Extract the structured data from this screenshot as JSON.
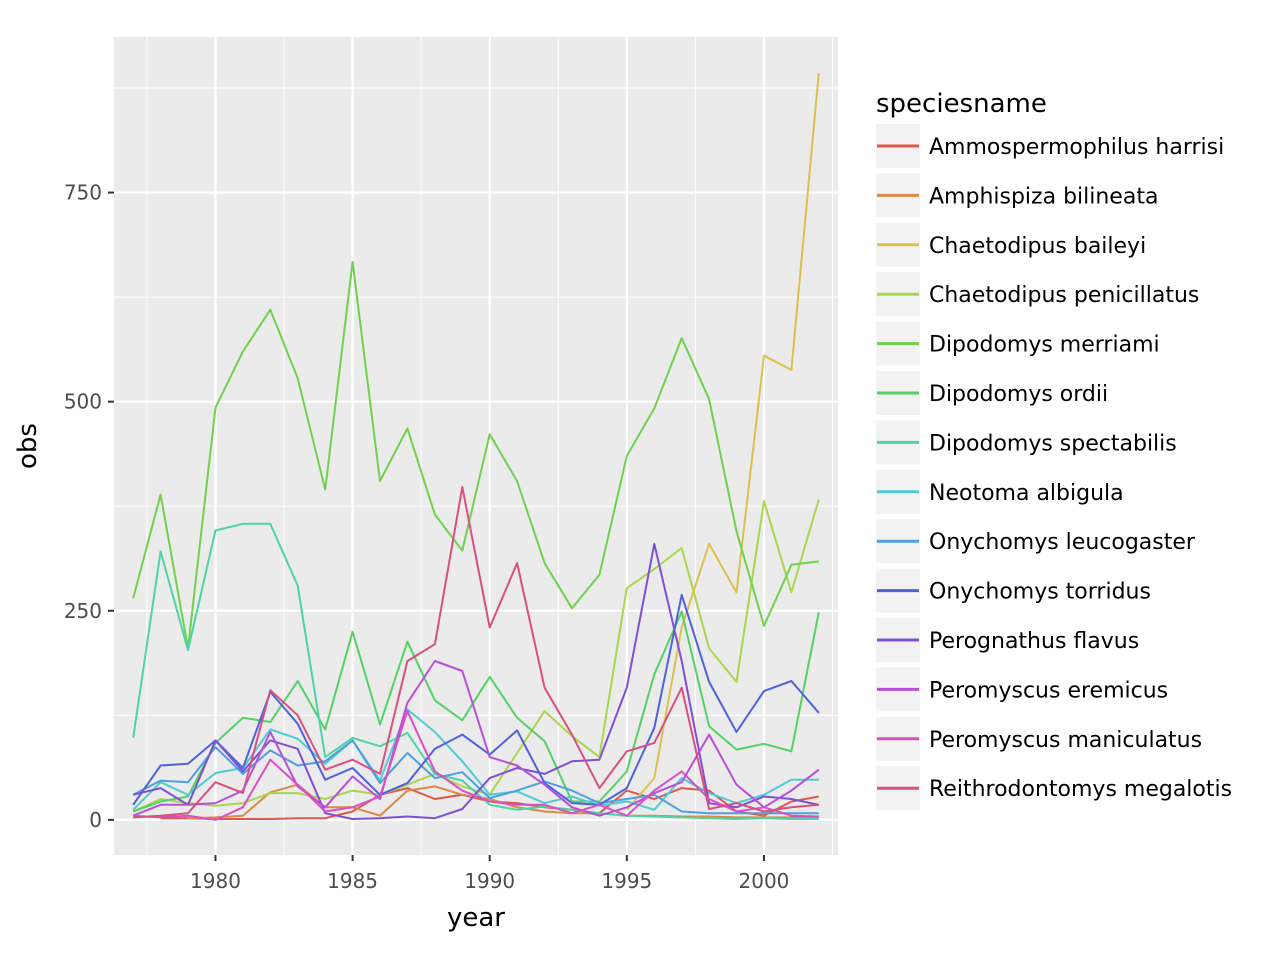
{
  "chart_data": {
    "type": "line",
    "xlabel": "year",
    "ylabel": "obs",
    "xlim": [
      1976.3,
      2002.7
    ],
    "ylim": [
      -42,
      936
    ],
    "x_ticks": [
      1980,
      1985,
      1990,
      1995,
      2000
    ],
    "y_ticks": [
      0,
      250,
      500,
      750
    ],
    "x_tick_labels": [
      "1980",
      "1985",
      "1990",
      "1995",
      "2000"
    ],
    "y_tick_labels": [
      "0",
      "250",
      "500",
      "750"
    ],
    "grid": true,
    "legend": {
      "title": "speciesname",
      "placement": "right"
    },
    "series": [
      {
        "name": "Ammospermophilus harrisi",
        "color": "#e0574b",
        "x": [
          1978,
          1979,
          1980,
          1981,
          1982,
          1983,
          1984,
          1985,
          1986,
          1987,
          1988,
          1989,
          1990,
          1991,
          1992,
          1993,
          1994,
          1995,
          1996,
          1997,
          1998,
          1999,
          2000,
          2001,
          2002
        ],
        "y": [
          2,
          2,
          1,
          1,
          1,
          2,
          2,
          10,
          30,
          38,
          25,
          30,
          22,
          20,
          15,
          12,
          8,
          35,
          25,
          38,
          35,
          10,
          5,
          22,
          28
        ]
      },
      {
        "name": "Amphispiza bilineata",
        "color": "#d98a46",
        "x": [
          1979,
          1980,
          1981,
          1982,
          1983,
          1984,
          1985,
          1986,
          1987,
          1988,
          1989,
          1990,
          1991,
          1992,
          1993,
          1994,
          1995,
          1996,
          1997,
          1998,
          1999,
          2000,
          2001,
          2002
        ],
        "y": [
          2,
          3,
          5,
          33,
          42,
          15,
          15,
          5,
          35,
          40,
          30,
          25,
          15,
          10,
          8,
          8,
          5,
          5,
          4,
          4,
          3,
          3,
          3,
          3
        ]
      },
      {
        "name": "Chaetodipus baileyi",
        "color": "#dbc24e",
        "x": [
          1995,
          1996,
          1997,
          1998,
          1999,
          2000,
          2001,
          2002
        ],
        "y": [
          12,
          50,
          230,
          330,
          272,
          555,
          538,
          893
        ]
      },
      {
        "name": "Chaetodipus penicillatus",
        "color": "#a9d64c",
        "x": [
          1977,
          1978,
          1979,
          1980,
          1981,
          1982,
          1983,
          1984,
          1985,
          1986,
          1987,
          1988,
          1989,
          1990,
          1991,
          1992,
          1993,
          1994,
          1995,
          1996,
          1997,
          1998,
          1999,
          2000,
          2001,
          2002
        ],
        "y": [
          10,
          25,
          20,
          17,
          20,
          32,
          32,
          25,
          35,
          30,
          42,
          55,
          40,
          30,
          80,
          130,
          100,
          75,
          277,
          300,
          325,
          205,
          165,
          381,
          272,
          383
        ]
      },
      {
        "name": "Dipodomys merriami",
        "color": "#6fd14d",
        "x": [
          1977,
          1978,
          1979,
          1980,
          1981,
          1982,
          1983,
          1984,
          1985,
          1986,
          1987,
          1988,
          1989,
          1990,
          1991,
          1992,
          1993,
          1994,
          1995,
          1996,
          1997,
          1998,
          1999,
          2000,
          2001,
          2002
        ],
        "y": [
          265,
          389,
          205,
          493,
          560,
          610,
          528,
          395,
          667,
          405,
          468,
          365,
          322,
          461,
          405,
          307,
          253,
          293,
          435,
          492,
          576,
          503,
          345,
          232,
          305,
          309
        ]
      },
      {
        "name": "Dipodomys ordii",
        "color": "#54d166",
        "x": [
          1977,
          1978,
          1979,
          1980,
          1981,
          1982,
          1983,
          1984,
          1985,
          1986,
          1987,
          1988,
          1989,
          1990,
          1991,
          1992,
          1993,
          1994,
          1995,
          1996,
          1997,
          1998,
          1999,
          2000,
          2001,
          2002
        ],
        "y": [
          10,
          22,
          28,
          92,
          122,
          117,
          166,
          108,
          225,
          114,
          213,
          143,
          119,
          171,
          122,
          94,
          22,
          22,
          58,
          174,
          249,
          112,
          84,
          91,
          82,
          248
        ]
      },
      {
        "name": "Dipodomys spectabilis",
        "color": "#4ed4a3",
        "x": [
          1977,
          1978,
          1979,
          1980,
          1981,
          1982,
          1983,
          1984,
          1985,
          1986,
          1987,
          1988,
          1989,
          1990,
          1991,
          1992,
          1993,
          1994,
          1995,
          1996,
          1997,
          1998,
          1999,
          2000,
          2001,
          2002
        ],
        "y": [
          98,
          321,
          203,
          346,
          354,
          354,
          280,
          75,
          98,
          88,
          104,
          55,
          47,
          18,
          12,
          16,
          12,
          8,
          5,
          4,
          3,
          2,
          1,
          2,
          1,
          1
        ]
      },
      {
        "name": "Neotoma albigula",
        "color": "#4ecbd3",
        "x": [
          1977,
          1978,
          1979,
          1980,
          1981,
          1982,
          1983,
          1984,
          1985,
          1986,
          1987,
          1988,
          1989,
          1990,
          1991,
          1992,
          1993,
          1994,
          1995,
          1996,
          1997,
          1998,
          1999,
          2000,
          2001,
          2002
        ],
        "y": [
          12,
          45,
          30,
          56,
          62,
          108,
          97,
          67,
          95,
          47,
          132,
          105,
          70,
          30,
          34,
          20,
          28,
          17,
          22,
          12,
          50,
          32,
          20,
          30,
          48,
          48
        ]
      },
      {
        "name": "Onychomys leucogaster",
        "color": "#4f9ee0",
        "x": [
          1977,
          1978,
          1979,
          1980,
          1981,
          1982,
          1983,
          1984,
          1985,
          1986,
          1987,
          1988,
          1989,
          1990,
          1991,
          1992,
          1993,
          1994,
          1995,
          1996,
          1997,
          1998,
          1999,
          2000,
          2001,
          2002
        ],
        "y": [
          30,
          47,
          45,
          87,
          55,
          83,
          65,
          70,
          95,
          44,
          80,
          50,
          57,
          26,
          35,
          46,
          35,
          20,
          25,
          30,
          10,
          8,
          8,
          8,
          8,
          8
        ]
      },
      {
        "name": "Onychomys torridus",
        "color": "#5062d9",
        "x": [
          1977,
          1978,
          1979,
          1980,
          1981,
          1982,
          1983,
          1984,
          1985,
          1986,
          1987,
          1988,
          1989,
          1990,
          1991,
          1992,
          1993,
          1994,
          1995,
          1996,
          1997,
          1998,
          1999,
          2000,
          2001,
          2002
        ],
        "y": [
          18,
          65,
          67,
          95,
          62,
          153,
          115,
          48,
          62,
          30,
          44,
          85,
          102,
          78,
          107,
          44,
          20,
          18,
          38,
          110,
          269,
          165,
          105,
          154,
          166,
          128
        ]
      },
      {
        "name": "Perognathus flavus",
        "color": "#7f4fd6",
        "x": [
          1977,
          1978,
          1979,
          1980,
          1981,
          1982,
          1983,
          1984,
          1985,
          1986,
          1987,
          1988,
          1989,
          1990,
          1991,
          1992,
          1993,
          1994,
          1995,
          1996,
          1997,
          1998,
          1999,
          2000,
          2001,
          2002
        ],
        "y": [
          30,
          38,
          18,
          95,
          58,
          95,
          85,
          8,
          1,
          2,
          4,
          2,
          13,
          50,
          62,
          55,
          70,
          72,
          158,
          330,
          190,
          20,
          15,
          28,
          25,
          18
        ]
      },
      {
        "name": "Peromyscus eremicus",
        "color": "#b84fd9",
        "x": [
          1977,
          1978,
          1979,
          1980,
          1981,
          1982,
          1983,
          1984,
          1985,
          1986,
          1987,
          1988,
          1989,
          1990,
          1991,
          1992,
          1993,
          1994,
          1995,
          1996,
          1997,
          1998,
          1999,
          2000,
          2001,
          2002
        ],
        "y": [
          5,
          18,
          18,
          20,
          35,
          105,
          40,
          15,
          52,
          25,
          140,
          190,
          178,
          75,
          65,
          42,
          15,
          5,
          15,
          32,
          45,
          102,
          42,
          15,
          35,
          60
        ]
      },
      {
        "name": "Peromyscus maniculatus",
        "color": "#d94fc4",
        "x": [
          1977,
          1978,
          1979,
          1980,
          1981,
          1982,
          1983,
          1984,
          1985,
          1986,
          1987,
          1988,
          1989,
          1990,
          1991,
          1992,
          1993,
          1994,
          1995,
          1996,
          1997,
          1998,
          1999,
          2000,
          2001,
          2002
        ],
        "y": [
          5,
          3,
          5,
          0,
          15,
          72,
          42,
          10,
          15,
          28,
          130,
          58,
          35,
          22,
          18,
          18,
          8,
          18,
          5,
          35,
          58,
          25,
          10,
          15,
          5,
          4
        ]
      },
      {
        "name": "Reithrodontomys megalotis",
        "color": "#d94f80",
        "x": [
          1977,
          1978,
          1979,
          1980,
          1981,
          1982,
          1983,
          1984,
          1985,
          1986,
          1987,
          1988,
          1989,
          1990,
          1991,
          1992,
          1993,
          1994,
          1995,
          1996,
          1997,
          1998,
          1999,
          2000,
          2001,
          2002
        ],
        "y": [
          3,
          5,
          8,
          45,
          32,
          155,
          125,
          60,
          72,
          55,
          190,
          210,
          398,
          230,
          307,
          158,
          102,
          38,
          82,
          92,
          158,
          13,
          20,
          10,
          15,
          18
        ]
      }
    ]
  }
}
